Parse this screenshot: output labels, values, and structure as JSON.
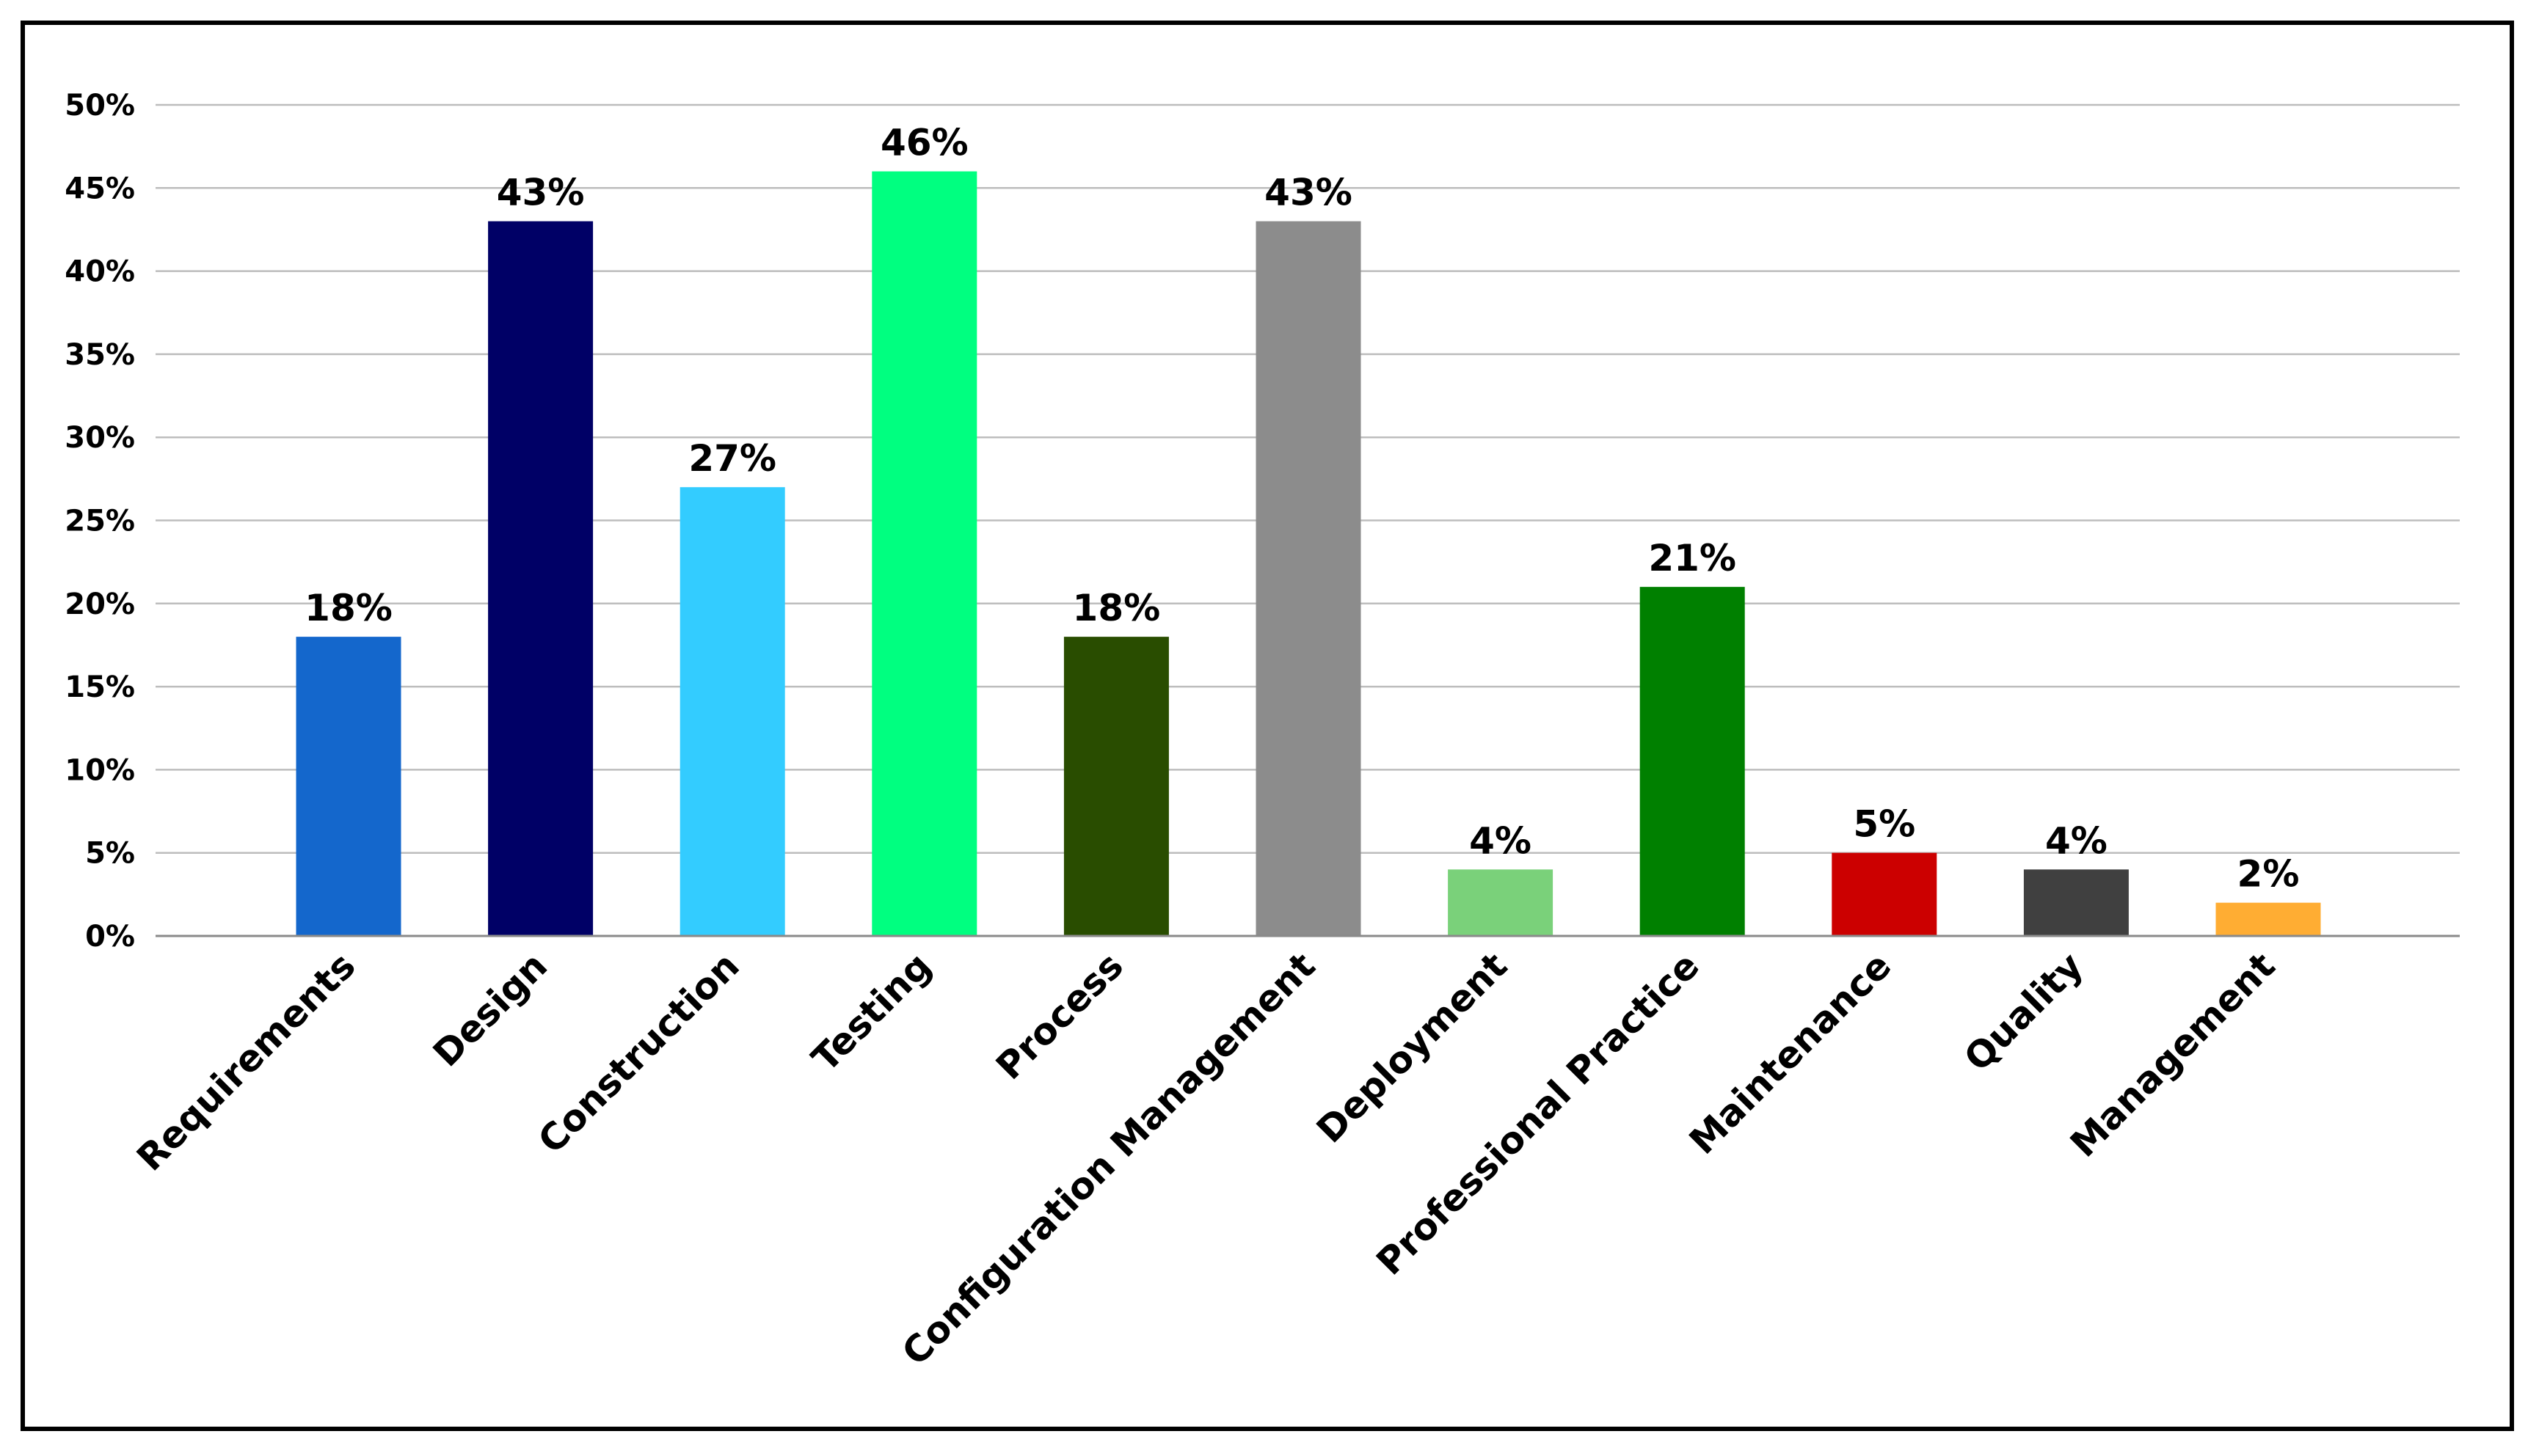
{
  "chart_data": {
    "type": "bar",
    "title": "",
    "xlabel": "",
    "ylabel": "",
    "ylim": [
      0,
      50
    ],
    "yticks": [
      0,
      5,
      10,
      15,
      20,
      25,
      30,
      35,
      40,
      45,
      50
    ],
    "ytick_suffix": "%",
    "grid": true,
    "legend": "none",
    "categories": [
      "Requirements",
      "Design",
      "Construction",
      "Testing",
      "Process",
      "Configuration Management",
      "Deployment",
      "Professional Practice",
      "Maintenance",
      "Quality",
      "Management"
    ],
    "values": [
      18,
      43,
      27,
      46,
      18,
      43,
      4,
      21,
      5,
      4,
      2
    ],
    "data_labels": [
      "18%",
      "43%",
      "27%",
      "46%",
      "18%",
      "43%",
      "4%",
      "21%",
      "5%",
      "4%",
      "2%"
    ],
    "colors": [
      "#1467cc",
      "#000066",
      "#33ccff",
      "#00ff80",
      "#294d00",
      "#8c8c8c",
      "#7ad17a",
      "#008000",
      "#cc0000",
      "#404040",
      "#ffad33"
    ]
  }
}
